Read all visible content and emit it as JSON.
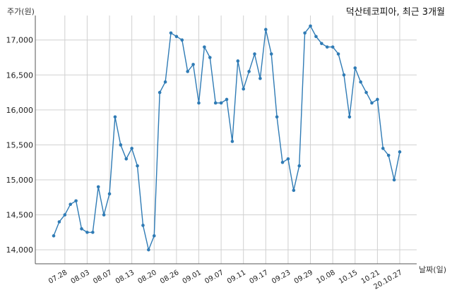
{
  "chart_data": {
    "type": "line",
    "title": "덕산테코피아, 최근 3개월",
    "ylabel": "주가(원)",
    "xlabel": "날짜(일)",
    "ylim": [
      13800,
      17350
    ],
    "yticks": [
      14000,
      14500,
      15000,
      15500,
      16000,
      16500,
      17000
    ],
    "ytick_labels": [
      "14,000",
      "14,500",
      "15,000",
      "15,500",
      "16,000",
      "16,500",
      "17,000"
    ],
    "xtick_labels": [
      "07.28",
      "08.03",
      "08.07",
      "08.13",
      "08.20",
      "08.26",
      "09.01",
      "09.07",
      "09.11",
      "09.17",
      "09.23",
      "09.29",
      "10.08",
      "10.15",
      "10.21",
      "20.10.27"
    ],
    "xtick_index": [
      2,
      6,
      10,
      14,
      18,
      22,
      26,
      30,
      34,
      38,
      42,
      46,
      50,
      54,
      58,
      62
    ],
    "grid": true,
    "color": "#2f7bb5",
    "values": [
      14200,
      14400,
      14500,
      14650,
      14700,
      14300,
      14250,
      14250,
      14900,
      14500,
      14800,
      15900,
      15500,
      15300,
      15450,
      15200,
      14350,
      14000,
      14200,
      16250,
      16400,
      17100,
      17050,
      17000,
      16550,
      16650,
      16100,
      16900,
      16750,
      16100,
      16100,
      16150,
      15550,
      16700,
      16300,
      16550,
      16800,
      16450,
      17150,
      16800,
      15900,
      15250,
      15300,
      14850,
      15200,
      17100,
      17200,
      17050,
      16950,
      16900,
      16900,
      16800,
      16500,
      15900,
      16600,
      16400,
      16250,
      16100,
      16150,
      15450,
      15350,
      15000,
      15400
    ]
  }
}
